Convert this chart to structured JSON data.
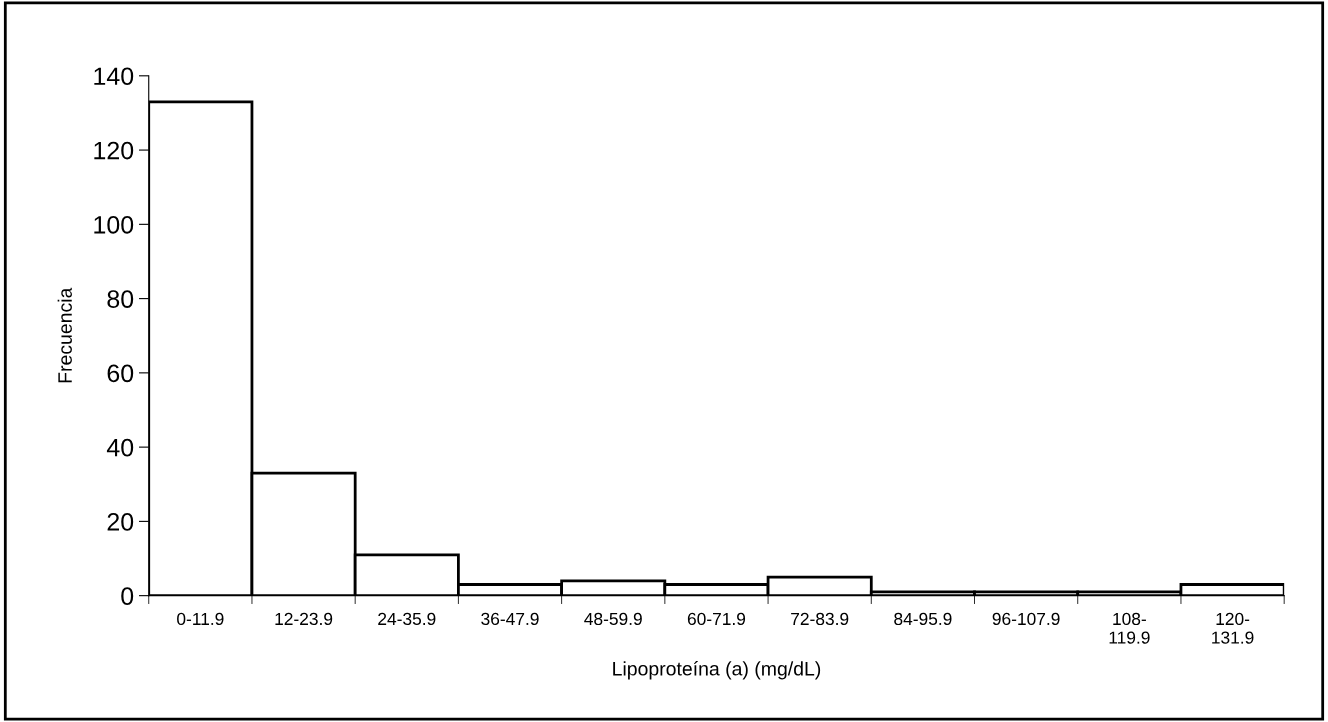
{
  "chart_data": {
    "type": "bar",
    "xlabel": "Lipoproteína (a) (mg/dL)",
    "ylabel": "Frecuencia",
    "categories": [
      "0-11.9",
      "12-23.9",
      "24-35.9",
      "36-47.9",
      "48-59.9",
      "60-71.9",
      "72-83.9",
      "84-95.9",
      "96-107.9",
      "108-\n119.9",
      "120-\n131.9"
    ],
    "values": [
      133,
      33,
      11,
      3,
      4,
      3,
      5,
      1,
      1,
      1,
      3
    ],
    "color": "#ffffff",
    "ylim": [
      0,
      140
    ],
    "yticks": [
      0,
      20,
      40,
      60,
      80,
      100,
      120,
      140
    ],
    "grid": false,
    "legend": false
  }
}
